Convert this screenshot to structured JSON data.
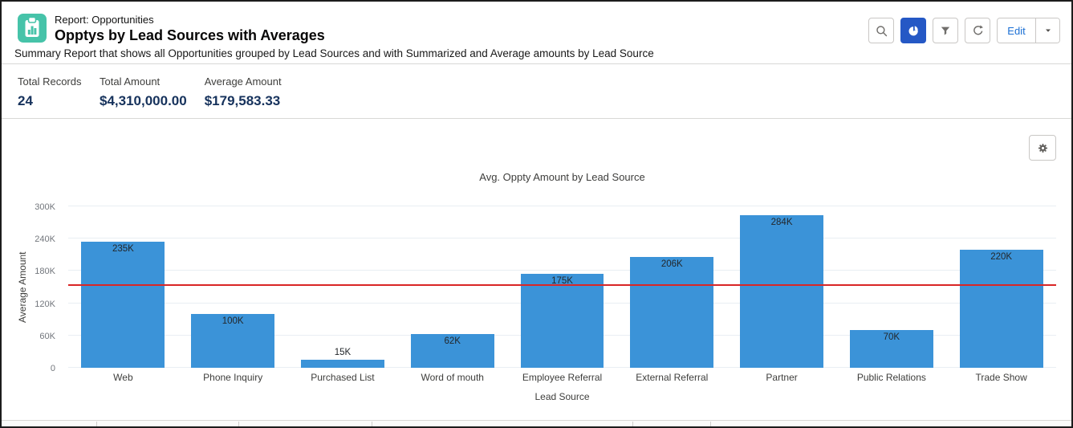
{
  "header": {
    "eyebrow": "Report: Opportunities",
    "title": "Opptys by Lead Sources with Averages",
    "description": "Summary Report that shows all Opportunities grouped by Lead Sources and with Summarized and Average amounts by Lead Source",
    "report_icon": "report-clipboard-icon",
    "toolbar": {
      "buttons": [
        {
          "icon": "search-icon",
          "active": false
        },
        {
          "icon": "pie-chart-icon",
          "active": true
        },
        {
          "icon": "filter-icon",
          "active": false
        },
        {
          "icon": "refresh-icon",
          "active": false
        }
      ],
      "edit_label": "Edit",
      "edit_menu_icon": "chevron-down-icon"
    }
  },
  "summary": {
    "metrics": [
      {
        "label": "Total Records",
        "value": "24"
      },
      {
        "label": "Total Amount",
        "value": "$4,310,000.00"
      },
      {
        "label": "Average Amount",
        "value": "$179,583.33"
      }
    ]
  },
  "chart_panel": {
    "settings_icon": "gear-icon"
  },
  "chart_data": {
    "type": "bar",
    "title": "Avg. Oppty Amount by Lead Source",
    "xlabel": "Lead Source",
    "ylabel": "Average Amount",
    "categories": [
      "Web",
      "Phone Inquiry",
      "Purchased List",
      "Word of mouth",
      "Employee Referral",
      "External Referral",
      "Partner",
      "Public Relations",
      "Trade Show"
    ],
    "values": [
      235,
      100,
      15,
      62,
      175,
      206,
      284,
      70,
      220
    ],
    "value_labels": [
      "235K",
      "100K",
      "15K",
      "62K",
      "175K",
      "206K",
      "284K",
      "70K",
      "220K"
    ],
    "unit": "thousands",
    "ylim": [
      0,
      300
    ],
    "yticks": [
      0,
      60,
      120,
      180,
      240,
      300
    ],
    "ytick_labels": [
      "0",
      "60K",
      "120K",
      "180K",
      "240K",
      "300K"
    ],
    "grid": true,
    "legend": "none",
    "reference_line": {
      "value_k": 151.9,
      "color": "#d92626"
    },
    "bar_color": "#3b93d8"
  },
  "colors": {
    "accent_teal": "#46c3a9",
    "active_button_blue": "#2558c5",
    "link_blue": "#1b6fd4",
    "stat_value_navy": "#16325c",
    "bar_blue": "#3b93d8",
    "reference_red": "#d92626"
  }
}
